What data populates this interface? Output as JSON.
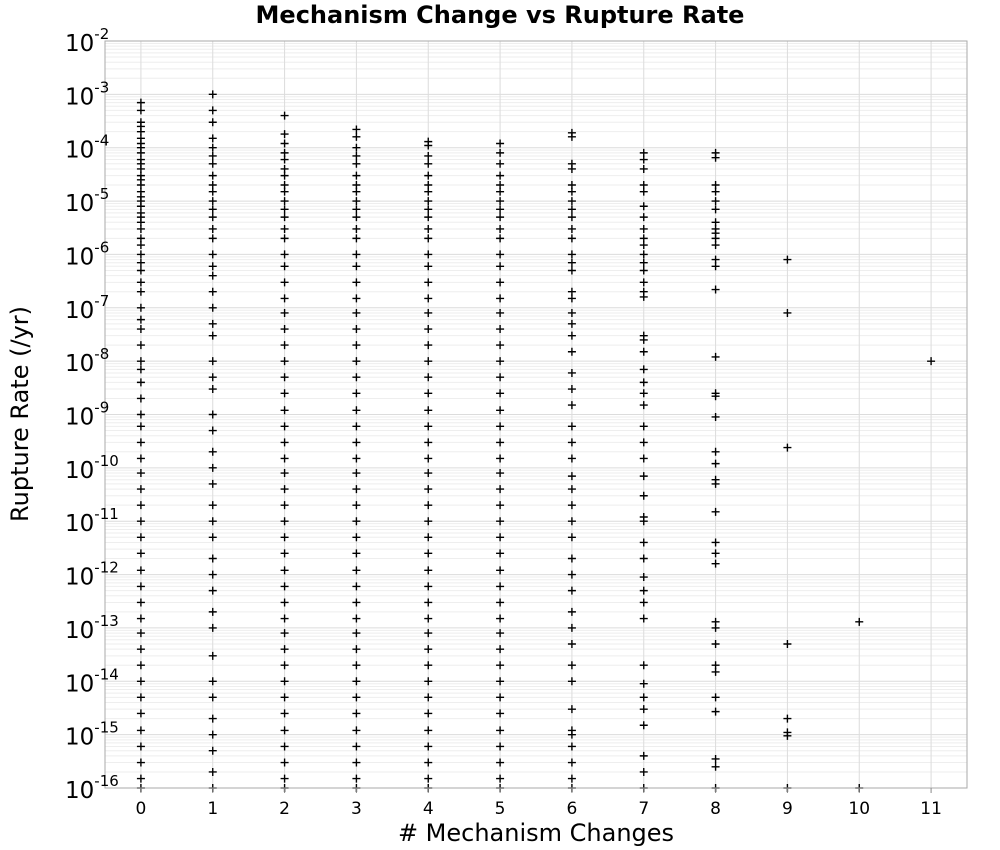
{
  "chart_data": {
    "type": "scatter",
    "title": "Mechanism Change vs Rupture Rate",
    "xlabel": "# Mechanism Changes",
    "ylabel": "Rupture Rate (/yr)",
    "xlim": [
      -0.5,
      11.5
    ],
    "ylim": [
      1e-16,
      0.01
    ],
    "y_scale": "log",
    "grid": true,
    "marker": "plus",
    "marker_color": "#000000",
    "x_ticks": [
      0,
      1,
      2,
      3,
      4,
      5,
      6,
      7,
      8,
      9,
      10,
      11
    ],
    "y_ticks": [
      {
        "base": "10",
        "exp": "-2"
      },
      {
        "base": "10",
        "exp": "-3"
      },
      {
        "base": "10",
        "exp": "-4"
      },
      {
        "base": "10",
        "exp": "-5"
      },
      {
        "base": "10",
        "exp": "-6"
      },
      {
        "base": "10",
        "exp": "-7"
      },
      {
        "base": "10",
        "exp": "-8"
      },
      {
        "base": "10",
        "exp": "-9"
      },
      {
        "base": "10",
        "exp": "-10"
      },
      {
        "base": "10",
        "exp": "-11"
      },
      {
        "base": "10",
        "exp": "-12"
      },
      {
        "base": "10",
        "exp": "-13"
      },
      {
        "base": "10",
        "exp": "-14"
      },
      {
        "base": "10",
        "exp": "-15"
      },
      {
        "base": "10",
        "exp": "-16"
      }
    ],
    "points": [
      {
        "x": 0,
        "y": [
          0.0007,
          0.0005,
          0.0003,
          0.00025,
          0.0002,
          0.00015,
          0.00012,
          0.0001,
          8e-05,
          6e-05,
          5e-05,
          4e-05,
          3e-05,
          2.5e-05,
          2e-05,
          1.5e-05,
          1.2e-05,
          1e-05,
          8e-06,
          6e-06,
          5e-06,
          4e-06,
          3e-06,
          2e-06,
          1.5e-06,
          1e-06,
          7e-07,
          5e-07,
          3e-07,
          2e-07,
          1e-07,
          6e-08,
          4e-08,
          2e-08,
          1e-08,
          7e-09,
          4e-09,
          2e-09,
          1e-09,
          6e-10,
          3e-10,
          1.5e-10,
          8e-11,
          4e-11,
          2e-11,
          1e-11,
          5e-12,
          2.5e-12,
          1.2e-12,
          6e-13,
          3e-13,
          1.5e-13,
          8e-14,
          4e-14,
          2e-14,
          1e-14,
          5e-15,
          2.5e-15,
          1.2e-15,
          6e-16,
          3e-16,
          1.5e-16,
          1e-16
        ]
      },
      {
        "x": 1,
        "y": [
          0.001,
          0.0005,
          0.0003,
          0.00015,
          0.0001,
          7e-05,
          5e-05,
          3e-05,
          2e-05,
          1.5e-05,
          1e-05,
          7e-06,
          5e-06,
          3e-06,
          2e-06,
          1e-06,
          6e-07,
          4e-07,
          2e-07,
          1e-07,
          5e-08,
          3e-08,
          1e-08,
          5e-09,
          3e-09,
          1e-09,
          5e-10,
          2e-10,
          1e-10,
          5e-11,
          2e-11,
          1e-11,
          5e-12,
          2e-12,
          1e-12,
          5e-13,
          2e-13,
          1e-13,
          3e-14,
          1e-14,
          5e-15,
          2e-15,
          1e-15,
          5e-16,
          2e-16,
          1e-16
        ]
      },
      {
        "x": 2,
        "y": [
          0.0004,
          0.00018,
          0.00012,
          8e-05,
          6e-05,
          4e-05,
          3e-05,
          2e-05,
          1.5e-05,
          1e-05,
          7e-06,
          5e-06,
          3e-06,
          2e-06,
          1e-06,
          6e-07,
          3e-07,
          1.5e-07,
          8e-08,
          4e-08,
          2e-08,
          1e-08,
          5e-09,
          2.5e-09,
          1.2e-09,
          6e-10,
          3e-10,
          1.5e-10,
          8e-11,
          4e-11,
          2e-11,
          1e-11,
          5e-12,
          2.5e-12,
          1.2e-12,
          6e-13,
          3e-13,
          1.5e-13,
          8e-14,
          4e-14,
          2e-14,
          1e-14,
          5e-15,
          2.5e-15,
          1.2e-15,
          6e-16,
          3e-16,
          1.5e-16,
          1e-16
        ]
      },
      {
        "x": 3,
        "y": [
          0.00022,
          0.00016,
          0.0001,
          7e-05,
          5e-05,
          3e-05,
          2e-05,
          1.5e-05,
          1e-05,
          7e-06,
          5e-06,
          3e-06,
          2e-06,
          1e-06,
          6e-07,
          3e-07,
          1.5e-07,
          8e-08,
          4e-08,
          2e-08,
          1e-08,
          5e-09,
          2.5e-09,
          1.2e-09,
          6e-10,
          3e-10,
          1.5e-10,
          8e-11,
          4e-11,
          2e-11,
          1e-11,
          5e-12,
          2.5e-12,
          1.2e-12,
          6e-13,
          3e-13,
          1.5e-13,
          8e-14,
          4e-14,
          2e-14,
          1e-14,
          5e-15,
          2.5e-15,
          1.2e-15,
          6e-16,
          3e-16,
          1.5e-16,
          1e-16
        ]
      },
      {
        "x": 4,
        "y": [
          0.00013,
          0.00011,
          7e-05,
          5e-05,
          3e-05,
          2e-05,
          1.5e-05,
          1e-05,
          7e-06,
          5e-06,
          3e-06,
          2e-06,
          1e-06,
          6e-07,
          3e-07,
          1.5e-07,
          8e-08,
          4e-08,
          2e-08,
          1e-08,
          5e-09,
          2.5e-09,
          1.2e-09,
          6e-10,
          3e-10,
          1.5e-10,
          8e-11,
          4e-11,
          2e-11,
          1e-11,
          5e-12,
          2.5e-12,
          1.2e-12,
          6e-13,
          3e-13,
          1.5e-13,
          8e-14,
          4e-14,
          2e-14,
          1e-14,
          5e-15,
          2.5e-15,
          1.2e-15,
          6e-16,
          3e-16,
          1.5e-16,
          1e-16
        ]
      },
      {
        "x": 5,
        "y": [
          0.00012,
          8e-05,
          5e-05,
          3e-05,
          2e-05,
          1.5e-05,
          1e-05,
          7e-06,
          5e-06,
          3e-06,
          2e-06,
          1e-06,
          6e-07,
          3e-07,
          1.5e-07,
          8e-08,
          4e-08,
          2e-08,
          1e-08,
          5e-09,
          2.5e-09,
          1.2e-09,
          6e-10,
          3e-10,
          1.5e-10,
          8e-11,
          4e-11,
          2e-11,
          1e-11,
          5e-12,
          2.5e-12,
          1.2e-12,
          6e-13,
          3e-13,
          1.5e-13,
          8e-14,
          4e-14,
          2e-14,
          1e-14,
          5e-15,
          2.5e-15,
          1.2e-15,
          6e-16,
          3e-16,
          1.5e-16,
          1e-16
        ]
      },
      {
        "x": 6,
        "y": [
          0.00019,
          0.00016,
          5e-05,
          4e-05,
          2e-05,
          1.5e-05,
          1e-05,
          7e-06,
          5e-06,
          3e-06,
          2e-06,
          1e-06,
          7e-07,
          5e-07,
          2e-07,
          1.5e-07,
          8e-08,
          5e-08,
          3e-08,
          1.5e-08,
          6e-09,
          3e-09,
          1.5e-09,
          6e-10,
          3e-10,
          1.5e-10,
          7e-11,
          4e-11,
          2e-11,
          1e-11,
          5e-12,
          2e-12,
          1e-12,
          5e-13,
          2e-13,
          1e-13,
          5e-14,
          2e-14,
          1e-14,
          3e-15,
          1.2e-15,
          1e-15,
          6e-16,
          3e-16,
          1.5e-16,
          1e-16
        ]
      },
      {
        "x": 7,
        "y": [
          8e-05,
          6e-05,
          4e-05,
          2e-05,
          1.5e-05,
          8e-06,
          5e-06,
          3e-06,
          2e-06,
          1.5e-06,
          1e-06,
          7e-07,
          5e-07,
          3e-07,
          2e-07,
          1.6e-07,
          3e-08,
          2.5e-08,
          1.5e-08,
          7e-09,
          4e-09,
          2.5e-09,
          1.5e-09,
          6e-10,
          3e-10,
          1.5e-10,
          7e-11,
          3e-11,
          1.2e-11,
          1e-11,
          4e-12,
          2e-12,
          9e-13,
          5e-13,
          3e-13,
          1.5e-13,
          2e-14,
          9e-15,
          5e-15,
          3e-15,
          1.5e-15,
          4e-16,
          2e-16,
          1e-16
        ]
      },
      {
        "x": 8,
        "y": [
          8e-05,
          6.5e-05,
          2e-05,
          1.5e-05,
          1e-05,
          7e-06,
          4e-06,
          3e-06,
          2.5e-06,
          2e-06,
          1.5e-06,
          8e-07,
          6e-07,
          2.2e-07,
          1.2e-08,
          2.5e-09,
          2.2e-09,
          9e-10,
          2e-10,
          1.2e-10,
          6e-11,
          5e-11,
          1.5e-11,
          4e-12,
          2.5e-12,
          1.6e-12,
          1.3e-13,
          1e-13,
          5e-14,
          2e-14,
          1.5e-14,
          5e-15,
          2.7e-15,
          3.5e-16,
          2.5e-16,
          1e-16
        ]
      },
      {
        "x": 9,
        "y": [
          8e-07,
          8e-08,
          2.4e-10,
          5e-14,
          2e-15,
          1.1e-15,
          9.5e-16,
          1e-16
        ]
      },
      {
        "x": 10,
        "y": [
          1.3e-13,
          1e-16
        ]
      },
      {
        "x": 11,
        "y": [
          1e-08
        ]
      }
    ]
  }
}
